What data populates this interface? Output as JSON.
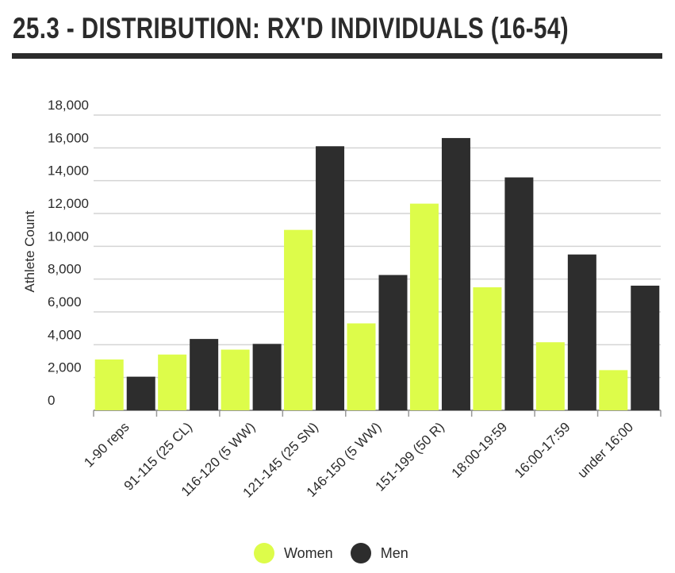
{
  "title": "25.3 - DISTRIBUTION: RX'D INDIVIDUALS (16-54)",
  "colors": {
    "women": "#ddfc4a",
    "men": "#2d2d2d",
    "grid": "#d4d4d4",
    "axis": "#999999",
    "text": "#2b2b2b"
  },
  "legend": [
    {
      "name": "Women",
      "color": "#ddfc4a"
    },
    {
      "name": "Men",
      "color": "#2d2d2d"
    }
  ],
  "chart_data": {
    "type": "bar",
    "title": "25.3 - DISTRIBUTION: RX'D INDIVIDUALS (16-54)",
    "xlabel": "",
    "ylabel": "Athlete Count",
    "ylim": [
      0,
      18000
    ],
    "yticks": [
      "0",
      "2,000",
      "4,000",
      "6,000",
      "8,000",
      "10,000",
      "12,000",
      "14,000",
      "16,000",
      "18,000"
    ],
    "grid": true,
    "legend_position": "bottom",
    "categories": [
      "1-90 reps",
      "91-115 (25 CL)",
      "116-120 (5 WW)",
      "121-145 (25 SN)",
      "146-150 (5 WW)",
      "151-199 (50 R)",
      "18:00-19:59",
      "16:00-17:59",
      "under 16:00"
    ],
    "series": [
      {
        "name": "Women",
        "values": [
          3100,
          3400,
          3700,
          11000,
          5300,
          12600,
          7500,
          4150,
          2450
        ]
      },
      {
        "name": "Men",
        "values": [
          2050,
          4350,
          4050,
          16100,
          8250,
          16600,
          14200,
          9500,
          7600
        ]
      }
    ]
  }
}
